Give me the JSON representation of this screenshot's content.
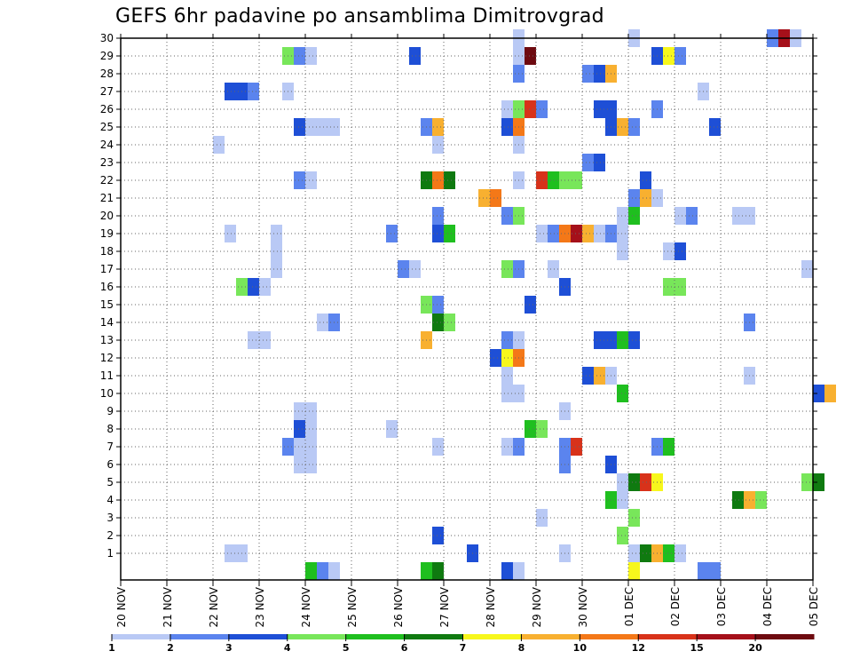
{
  "chart_data": {
    "type": "heatmap",
    "title": "GEFS 6hr padavine po ansamblima Dimitrovgrad",
    "x_tick_labels": [
      "20 NOV",
      "21 NOV",
      "22 NOV",
      "23 NOV",
      "24 NOV",
      "25 NOV",
      "26 NOV",
      "27 NOV",
      "28 NOV",
      "29 NOV",
      "30 NOV",
      "01 DEC",
      "02 DEC",
      "03 DEC",
      "04 DEC",
      "05 DEC"
    ],
    "y_tick_labels": [
      1,
      2,
      3,
      4,
      5,
      6,
      7,
      8,
      9,
      10,
      11,
      12,
      13,
      14,
      15,
      16,
      17,
      18,
      19,
      20,
      21,
      22,
      23,
      24,
      25,
      26,
      27,
      28,
      29,
      30
    ],
    "x_start": "2023-11-20",
    "step_hours": 6,
    "grid": true,
    "legend": {
      "position": "bottom",
      "labels": [
        "1",
        "2",
        "3",
        "4",
        "5",
        "6",
        "7",
        "8",
        "10",
        "12",
        "15",
        "20"
      ],
      "colors": [
        "#b9c9f5",
        "#5b84ee",
        "#1e4fd6",
        "#78e65a",
        "#1fbf1f",
        "#0f7a10",
        "#f7f71c",
        "#f8b030",
        "#f47818",
        "#d8321a",
        "#a5101a",
        "#6e0a10"
      ]
    },
    "cells": [
      {
        "m": 30,
        "t": "2023-11-28 12:00",
        "c": 1
      },
      {
        "m": 30,
        "t": "2023-12-01 00:00",
        "c": 1
      },
      {
        "m": 30,
        "t": "2023-12-04 00:00",
        "c": 2
      },
      {
        "m": 30,
        "t": "2023-12-04 06:00",
        "c": 11
      },
      {
        "m": 30,
        "t": "2023-12-04 12:00",
        "c": 1
      },
      {
        "m": 29,
        "t": "2023-11-23 12:00",
        "c": 4
      },
      {
        "m": 29,
        "t": "2023-11-23 18:00",
        "c": 2
      },
      {
        "m": 29,
        "t": "2023-11-24 00:00",
        "c": 1
      },
      {
        "m": 29,
        "t": "2023-11-26 06:00",
        "c": 3
      },
      {
        "m": 29,
        "t": "2023-11-28 12:00",
        "c": 1
      },
      {
        "m": 29,
        "t": "2023-11-28 18:00",
        "c": 12
      },
      {
        "m": 29,
        "t": "2023-12-01 12:00",
        "c": 3
      },
      {
        "m": 29,
        "t": "2023-12-01 18:00",
        "c": 7
      },
      {
        "m": 29,
        "t": "2023-12-02 00:00",
        "c": 2
      },
      {
        "m": 28,
        "t": "2023-11-28 12:00",
        "c": 2
      },
      {
        "m": 28,
        "t": "2023-11-30 00:00",
        "c": 2
      },
      {
        "m": 28,
        "t": "2023-11-30 06:00",
        "c": 3
      },
      {
        "m": 28,
        "t": "2023-11-30 12:00",
        "c": 8
      },
      {
        "m": 27,
        "t": "2023-11-22 06:00",
        "c": 3
      },
      {
        "m": 27,
        "t": "2023-11-22 12:00",
        "c": 3
      },
      {
        "m": 27,
        "t": "2023-11-22 18:00",
        "c": 2
      },
      {
        "m": 27,
        "t": "2023-11-23 12:00",
        "c": 1
      },
      {
        "m": 27,
        "t": "2023-12-02 12:00",
        "c": 1
      },
      {
        "m": 26,
        "t": "2023-11-28 06:00",
        "c": 1
      },
      {
        "m": 26,
        "t": "2023-11-28 12:00",
        "c": 4
      },
      {
        "m": 26,
        "t": "2023-11-28 18:00",
        "c": 10
      },
      {
        "m": 26,
        "t": "2023-11-29 00:00",
        "c": 2
      },
      {
        "m": 26,
        "t": "2023-11-30 06:00",
        "c": 3
      },
      {
        "m": 26,
        "t": "2023-11-30 12:00",
        "c": 3
      },
      {
        "m": 26,
        "t": "2023-12-01 12:00",
        "c": 2
      },
      {
        "m": 25,
        "t": "2023-11-23 18:00",
        "c": 3
      },
      {
        "m": 25,
        "t": "2023-11-24 00:00",
        "c": 1
      },
      {
        "m": 25,
        "t": "2023-11-24 06:00",
        "c": 1
      },
      {
        "m": 25,
        "t": "2023-11-24 12:00",
        "c": 1
      },
      {
        "m": 25,
        "t": "2023-11-26 12:00",
        "c": 2
      },
      {
        "m": 25,
        "t": "2023-11-26 18:00",
        "c": 8
      },
      {
        "m": 25,
        "t": "2023-11-28 06:00",
        "c": 3
      },
      {
        "m": 25,
        "t": "2023-11-28 12:00",
        "c": 9
      },
      {
        "m": 25,
        "t": "2023-11-30 12:00",
        "c": 3
      },
      {
        "m": 25,
        "t": "2023-11-30 18:00",
        "c": 8
      },
      {
        "m": 25,
        "t": "2023-12-01 00:00",
        "c": 2
      },
      {
        "m": 25,
        "t": "2023-12-02 18:00",
        "c": 3
      },
      {
        "m": 24,
        "t": "2023-11-22 00:00",
        "c": 1
      },
      {
        "m": 24,
        "t": "2023-11-26 18:00",
        "c": 1
      },
      {
        "m": 24,
        "t": "2023-11-28 12:00",
        "c": 1
      },
      {
        "m": 23,
        "t": "2023-11-30 00:00",
        "c": 2
      },
      {
        "m": 23,
        "t": "2023-11-30 06:00",
        "c": 3
      },
      {
        "m": 22,
        "t": "2023-11-23 18:00",
        "c": 2
      },
      {
        "m": 22,
        "t": "2023-11-24 00:00",
        "c": 1
      },
      {
        "m": 22,
        "t": "2023-11-26 12:00",
        "c": 6
      },
      {
        "m": 22,
        "t": "2023-11-26 18:00",
        "c": 9
      },
      {
        "m": 22,
        "t": "2023-11-27 00:00",
        "c": 6
      },
      {
        "m": 22,
        "t": "2023-11-28 12:00",
        "c": 1
      },
      {
        "m": 22,
        "t": "2023-11-29 00:00",
        "c": 10
      },
      {
        "m": 22,
        "t": "2023-11-29 06:00",
        "c": 5
      },
      {
        "m": 22,
        "t": "2023-11-29 12:00",
        "c": 4
      },
      {
        "m": 22,
        "t": "2023-11-29 18:00",
        "c": 4
      },
      {
        "m": 22,
        "t": "2023-12-01 06:00",
        "c": 3
      },
      {
        "m": 21,
        "t": "2023-11-27 18:00",
        "c": 8
      },
      {
        "m": 21,
        "t": "2023-11-28 00:00",
        "c": 9
      },
      {
        "m": 21,
        "t": "2023-12-01 00:00",
        "c": 2
      },
      {
        "m": 21,
        "t": "2023-12-01 06:00",
        "c": 8
      },
      {
        "m": 21,
        "t": "2023-12-01 12:00",
        "c": 1
      },
      {
        "m": 20,
        "t": "2023-11-26 18:00",
        "c": 2
      },
      {
        "m": 20,
        "t": "2023-11-28 06:00",
        "c": 2
      },
      {
        "m": 20,
        "t": "2023-11-28 12:00",
        "c": 4
      },
      {
        "m": 20,
        "t": "2023-11-30 18:00",
        "c": 1
      },
      {
        "m": 20,
        "t": "2023-12-01 00:00",
        "c": 5
      },
      {
        "m": 20,
        "t": "2023-12-02 00:00",
        "c": 1
      },
      {
        "m": 20,
        "t": "2023-12-02 06:00",
        "c": 2
      },
      {
        "m": 20,
        "t": "2023-12-03 06:00",
        "c": 1
      },
      {
        "m": 20,
        "t": "2023-12-03 12:00",
        "c": 1
      },
      {
        "m": 19,
        "t": "2023-11-22 06:00",
        "c": 1
      },
      {
        "m": 19,
        "t": "2023-11-23 06:00",
        "c": 1
      },
      {
        "m": 19,
        "t": "2023-11-25 18:00",
        "c": 2
      },
      {
        "m": 19,
        "t": "2023-11-26 18:00",
        "c": 3
      },
      {
        "m": 19,
        "t": "2023-11-27 00:00",
        "c": 5
      },
      {
        "m": 19,
        "t": "2023-11-29 00:00",
        "c": 1
      },
      {
        "m": 19,
        "t": "2023-11-29 06:00",
        "c": 2
      },
      {
        "m": 19,
        "t": "2023-11-29 12:00",
        "c": 9
      },
      {
        "m": 19,
        "t": "2023-11-29 18:00",
        "c": 11
      },
      {
        "m": 19,
        "t": "2023-11-30 00:00",
        "c": 8
      },
      {
        "m": 19,
        "t": "2023-11-30 06:00",
        "c": 1
      },
      {
        "m": 19,
        "t": "2023-11-30 12:00",
        "c": 2
      },
      {
        "m": 19,
        "t": "2023-11-30 18:00",
        "c": 1
      },
      {
        "m": 18,
        "t": "2023-11-23 06:00",
        "c": 1
      },
      {
        "m": 18,
        "t": "2023-11-30 18:00",
        "c": 1
      },
      {
        "m": 18,
        "t": "2023-12-01 18:00",
        "c": 1
      },
      {
        "m": 18,
        "t": "2023-12-02 00:00",
        "c": 3
      },
      {
        "m": 17,
        "t": "2023-11-23 06:00",
        "c": 1
      },
      {
        "m": 17,
        "t": "2023-11-26 00:00",
        "c": 2
      },
      {
        "m": 17,
        "t": "2023-11-26 06:00",
        "c": 1
      },
      {
        "m": 17,
        "t": "2023-11-28 06:00",
        "c": 4
      },
      {
        "m": 17,
        "t": "2023-11-28 12:00",
        "c": 2
      },
      {
        "m": 17,
        "t": "2023-11-29 06:00",
        "c": 1
      },
      {
        "m": 17,
        "t": "2023-12-04 18:00",
        "c": 1
      },
      {
        "m": 16,
        "t": "2023-11-22 12:00",
        "c": 4
      },
      {
        "m": 16,
        "t": "2023-11-22 18:00",
        "c": 3
      },
      {
        "m": 16,
        "t": "2023-11-23 00:00",
        "c": 1
      },
      {
        "m": 16,
        "t": "2023-11-29 12:00",
        "c": 3
      },
      {
        "m": 16,
        "t": "2023-12-01 18:00",
        "c": 4
      },
      {
        "m": 16,
        "t": "2023-12-02 00:00",
        "c": 4
      },
      {
        "m": 15,
        "t": "2023-11-26 12:00",
        "c": 4
      },
      {
        "m": 15,
        "t": "2023-11-26 18:00",
        "c": 2
      },
      {
        "m": 15,
        "t": "2023-11-28 18:00",
        "c": 3
      },
      {
        "m": 14,
        "t": "2023-11-24 06:00",
        "c": 1
      },
      {
        "m": 14,
        "t": "2023-11-24 12:00",
        "c": 2
      },
      {
        "m": 14,
        "t": "2023-11-26 18:00",
        "c": 6
      },
      {
        "m": 14,
        "t": "2023-11-27 00:00",
        "c": 4
      },
      {
        "m": 14,
        "t": "2023-12-03 12:00",
        "c": 2
      },
      {
        "m": 13,
        "t": "2023-11-22 18:00",
        "c": 1
      },
      {
        "m": 13,
        "t": "2023-11-23 00:00",
        "c": 1
      },
      {
        "m": 13,
        "t": "2023-11-26 12:00",
        "c": 8
      },
      {
        "m": 13,
        "t": "2023-11-28 06:00",
        "c": 2
      },
      {
        "m": 13,
        "t": "2023-11-28 12:00",
        "c": 1
      },
      {
        "m": 13,
        "t": "2023-11-30 06:00",
        "c": 3
      },
      {
        "m": 13,
        "t": "2023-11-30 12:00",
        "c": 3
      },
      {
        "m": 13,
        "t": "2023-11-30 18:00",
        "c": 5
      },
      {
        "m": 13,
        "t": "2023-12-01 00:00",
        "c": 3
      },
      {
        "m": 12,
        "t": "2023-11-28 00:00",
        "c": 3
      },
      {
        "m": 12,
        "t": "2023-11-28 06:00",
        "c": 7
      },
      {
        "m": 12,
        "t": "2023-11-28 12:00",
        "c": 9
      },
      {
        "m": 11,
        "t": "2023-11-28 06:00",
        "c": 1
      },
      {
        "m": 11,
        "t": "2023-11-30 00:00",
        "c": 3
      },
      {
        "m": 11,
        "t": "2023-11-30 06:00",
        "c": 8
      },
      {
        "m": 11,
        "t": "2023-11-30 12:00",
        "c": 1
      },
      {
        "m": 11,
        "t": "2023-12-03 12:00",
        "c": 1
      },
      {
        "m": 10,
        "t": "2023-11-28 06:00",
        "c": 1
      },
      {
        "m": 10,
        "t": "2023-11-28 12:00",
        "c": 1
      },
      {
        "m": 10,
        "t": "2023-11-30 18:00",
        "c": 5
      },
      {
        "m": 10,
        "t": "2023-12-05 00:00",
        "c": 3
      },
      {
        "m": 10,
        "t": "2023-12-05 06:00",
        "c": 8
      },
      {
        "m": 9,
        "t": "2023-11-23 18:00",
        "c": 1
      },
      {
        "m": 9,
        "t": "2023-11-24 00:00",
        "c": 1
      },
      {
        "m": 9,
        "t": "2023-11-29 12:00",
        "c": 1
      },
      {
        "m": 8,
        "t": "2023-11-23 18:00",
        "c": 3
      },
      {
        "m": 8,
        "t": "2023-11-24 00:00",
        "c": 1
      },
      {
        "m": 8,
        "t": "2023-11-25 18:00",
        "c": 1
      },
      {
        "m": 8,
        "t": "2023-11-28 18:00",
        "c": 5
      },
      {
        "m": 8,
        "t": "2023-11-29 00:00",
        "c": 4
      },
      {
        "m": 7,
        "t": "2023-11-23 12:00",
        "c": 2
      },
      {
        "m": 7,
        "t": "2023-11-23 18:00",
        "c": 1
      },
      {
        "m": 7,
        "t": "2023-11-24 00:00",
        "c": 1
      },
      {
        "m": 7,
        "t": "2023-11-26 18:00",
        "c": 1
      },
      {
        "m": 7,
        "t": "2023-11-28 06:00",
        "c": 1
      },
      {
        "m": 7,
        "t": "2023-11-28 12:00",
        "c": 2
      },
      {
        "m": 7,
        "t": "2023-11-29 12:00",
        "c": 2
      },
      {
        "m": 7,
        "t": "2023-11-29 18:00",
        "c": 10
      },
      {
        "m": 7,
        "t": "2023-12-01 12:00",
        "c": 2
      },
      {
        "m": 7,
        "t": "2023-12-01 18:00",
        "c": 5
      },
      {
        "m": 6,
        "t": "2023-11-23 18:00",
        "c": 1
      },
      {
        "m": 6,
        "t": "2023-11-24 00:00",
        "c": 1
      },
      {
        "m": 6,
        "t": "2023-11-29 12:00",
        "c": 2
      },
      {
        "m": 6,
        "t": "2023-11-30 12:00",
        "c": 3
      },
      {
        "m": 5,
        "t": "2023-11-30 18:00",
        "c": 1
      },
      {
        "m": 5,
        "t": "2023-12-01 00:00",
        "c": 6
      },
      {
        "m": 5,
        "t": "2023-12-01 06:00",
        "c": 10
      },
      {
        "m": 5,
        "t": "2023-12-01 12:00",
        "c": 7
      },
      {
        "m": 5,
        "t": "2023-12-04 18:00",
        "c": 4
      },
      {
        "m": 5,
        "t": "2023-12-05 00:00",
        "c": 6
      },
      {
        "m": 4,
        "t": "2023-11-30 12:00",
        "c": 5
      },
      {
        "m": 4,
        "t": "2023-11-30 18:00",
        "c": 1
      },
      {
        "m": 4,
        "t": "2023-12-03 06:00",
        "c": 6
      },
      {
        "m": 4,
        "t": "2023-12-03 12:00",
        "c": 8
      },
      {
        "m": 4,
        "t": "2023-12-03 18:00",
        "c": 4
      },
      {
        "m": 3,
        "t": "2023-11-29 00:00",
        "c": 1
      },
      {
        "m": 3,
        "t": "2023-12-01 00:00",
        "c": 4
      },
      {
        "m": 2,
        "t": "2023-11-26 18:00",
        "c": 3
      },
      {
        "m": 2,
        "t": "2023-11-30 18:00",
        "c": 4
      },
      {
        "m": 1,
        "t": "2023-11-22 06:00",
        "c": 1
      },
      {
        "m": 1,
        "t": "2023-11-22 12:00",
        "c": 1
      },
      {
        "m": 1,
        "t": "2023-11-27 12:00",
        "c": 3
      },
      {
        "m": 1,
        "t": "2023-11-29 12:00",
        "c": 1
      },
      {
        "m": 1,
        "t": "2023-12-01 00:00",
        "c": 1
      },
      {
        "m": 1,
        "t": "2023-12-01 06:00",
        "c": 6
      },
      {
        "m": 1,
        "t": "2023-12-01 12:00",
        "c": 8
      },
      {
        "m": 1,
        "t": "2023-12-01 18:00",
        "c": 5
      },
      {
        "m": 1,
        "t": "2023-12-02 00:00",
        "c": 1
      },
      {
        "m": 0,
        "t": "2023-11-24 00:00",
        "c": 5
      },
      {
        "m": 0,
        "t": "2023-11-24 06:00",
        "c": 2
      },
      {
        "m": 0,
        "t": "2023-11-24 12:00",
        "c": 1
      },
      {
        "m": 0,
        "t": "2023-11-26 12:00",
        "c": 5
      },
      {
        "m": 0,
        "t": "2023-11-26 18:00",
        "c": 6
      },
      {
        "m": 0,
        "t": "2023-11-28 06:00",
        "c": 3
      },
      {
        "m": 0,
        "t": "2023-11-28 12:00",
        "c": 1
      },
      {
        "m": 0,
        "t": "2023-12-01 00:00",
        "c": 7
      },
      {
        "m": 0,
        "t": "2023-12-02 12:00",
        "c": 2
      },
      {
        "m": 0,
        "t": "2023-12-02 18:00",
        "c": 2
      }
    ]
  }
}
